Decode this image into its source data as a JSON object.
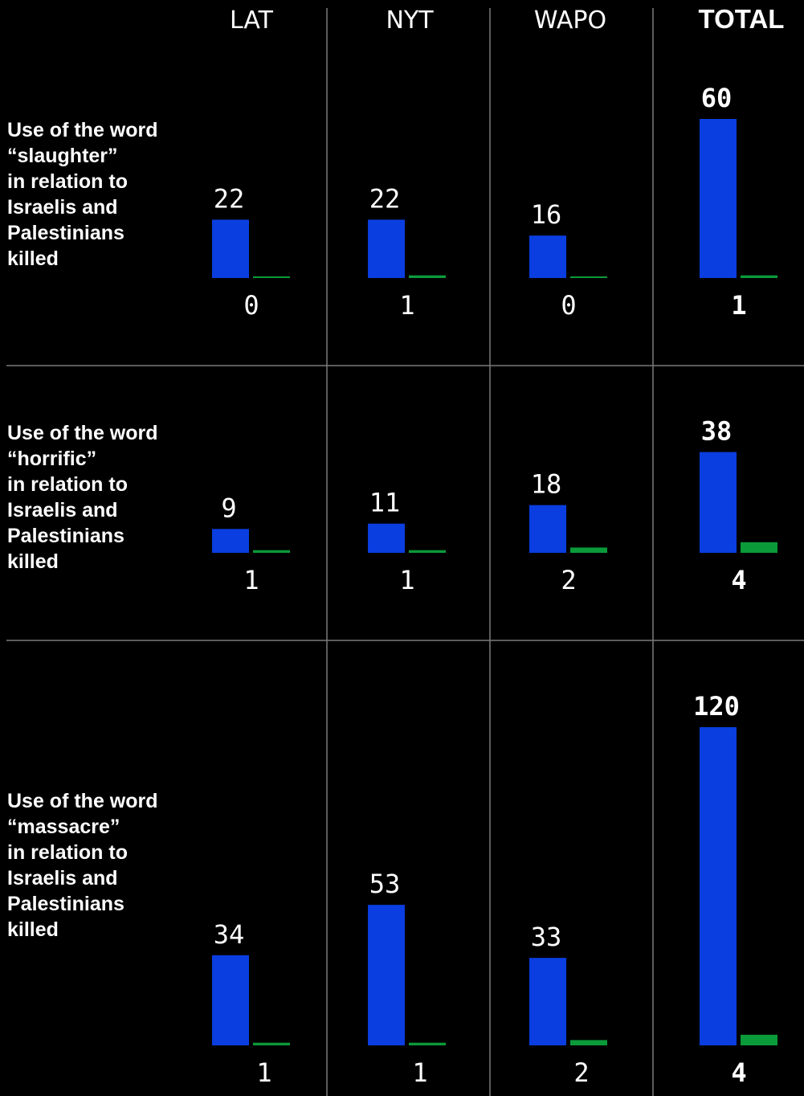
{
  "colors": {
    "israelis": "#0a3ee0",
    "palestinians": "#0b9a3a",
    "background": "#000000",
    "grid": "#7a7a7a"
  },
  "chart_data": {
    "type": "bar",
    "columns": [
      "LAT",
      "NYT",
      "WAPO",
      "TOTAL"
    ],
    "series": [
      {
        "color": "#0a3ee0"
      },
      {
        "color": "#0b9a3a"
      }
    ],
    "rows": [
      {
        "label_lines": [
          "Use of the word",
          "“slaughter”",
          "in relation to",
          "Israelis and",
          "Palestinians",
          "killed"
        ],
        "values": [
          [
            22,
            0
          ],
          [
            22,
            1
          ],
          [
            16,
            0
          ],
          [
            60,
            1
          ]
        ]
      },
      {
        "label_lines": [
          "Use of the word",
          "“horrific”",
          "in relation to",
          "Israelis and",
          "Palestinians",
          "killed"
        ],
        "values": [
          [
            9,
            1
          ],
          [
            11,
            1
          ],
          [
            18,
            2
          ],
          [
            38,
            4
          ]
        ]
      },
      {
        "label_lines": [
          "Use of the word",
          "“massacre”",
          "in relation to",
          "Israelis and",
          "Palestinians",
          "killed"
        ],
        "values": [
          [
            34,
            1
          ],
          [
            53,
            1
          ],
          [
            33,
            2
          ],
          [
            120,
            4
          ]
        ]
      }
    ]
  }
}
